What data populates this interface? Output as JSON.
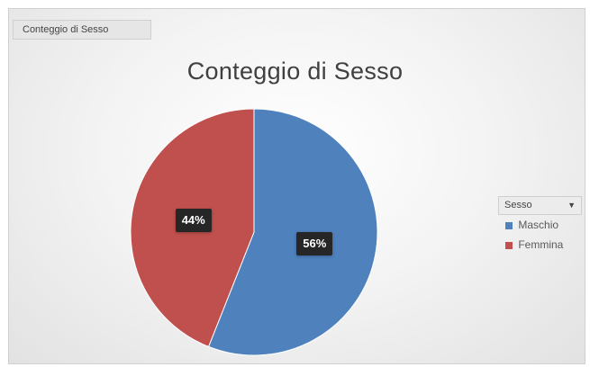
{
  "field_button": {
    "label": "Conteggio di Sesso"
  },
  "chart_data": {
    "type": "pie",
    "title": "Conteggio di Sesso",
    "categories": [
      "Maschio",
      "Femmina"
    ],
    "values": [
      56,
      44
    ],
    "value_labels": [
      "56%",
      "44%"
    ],
    "colors": [
      "#4f81bd",
      "#c0504d"
    ],
    "legend": {
      "title": "Sesso",
      "position": "right"
    }
  }
}
